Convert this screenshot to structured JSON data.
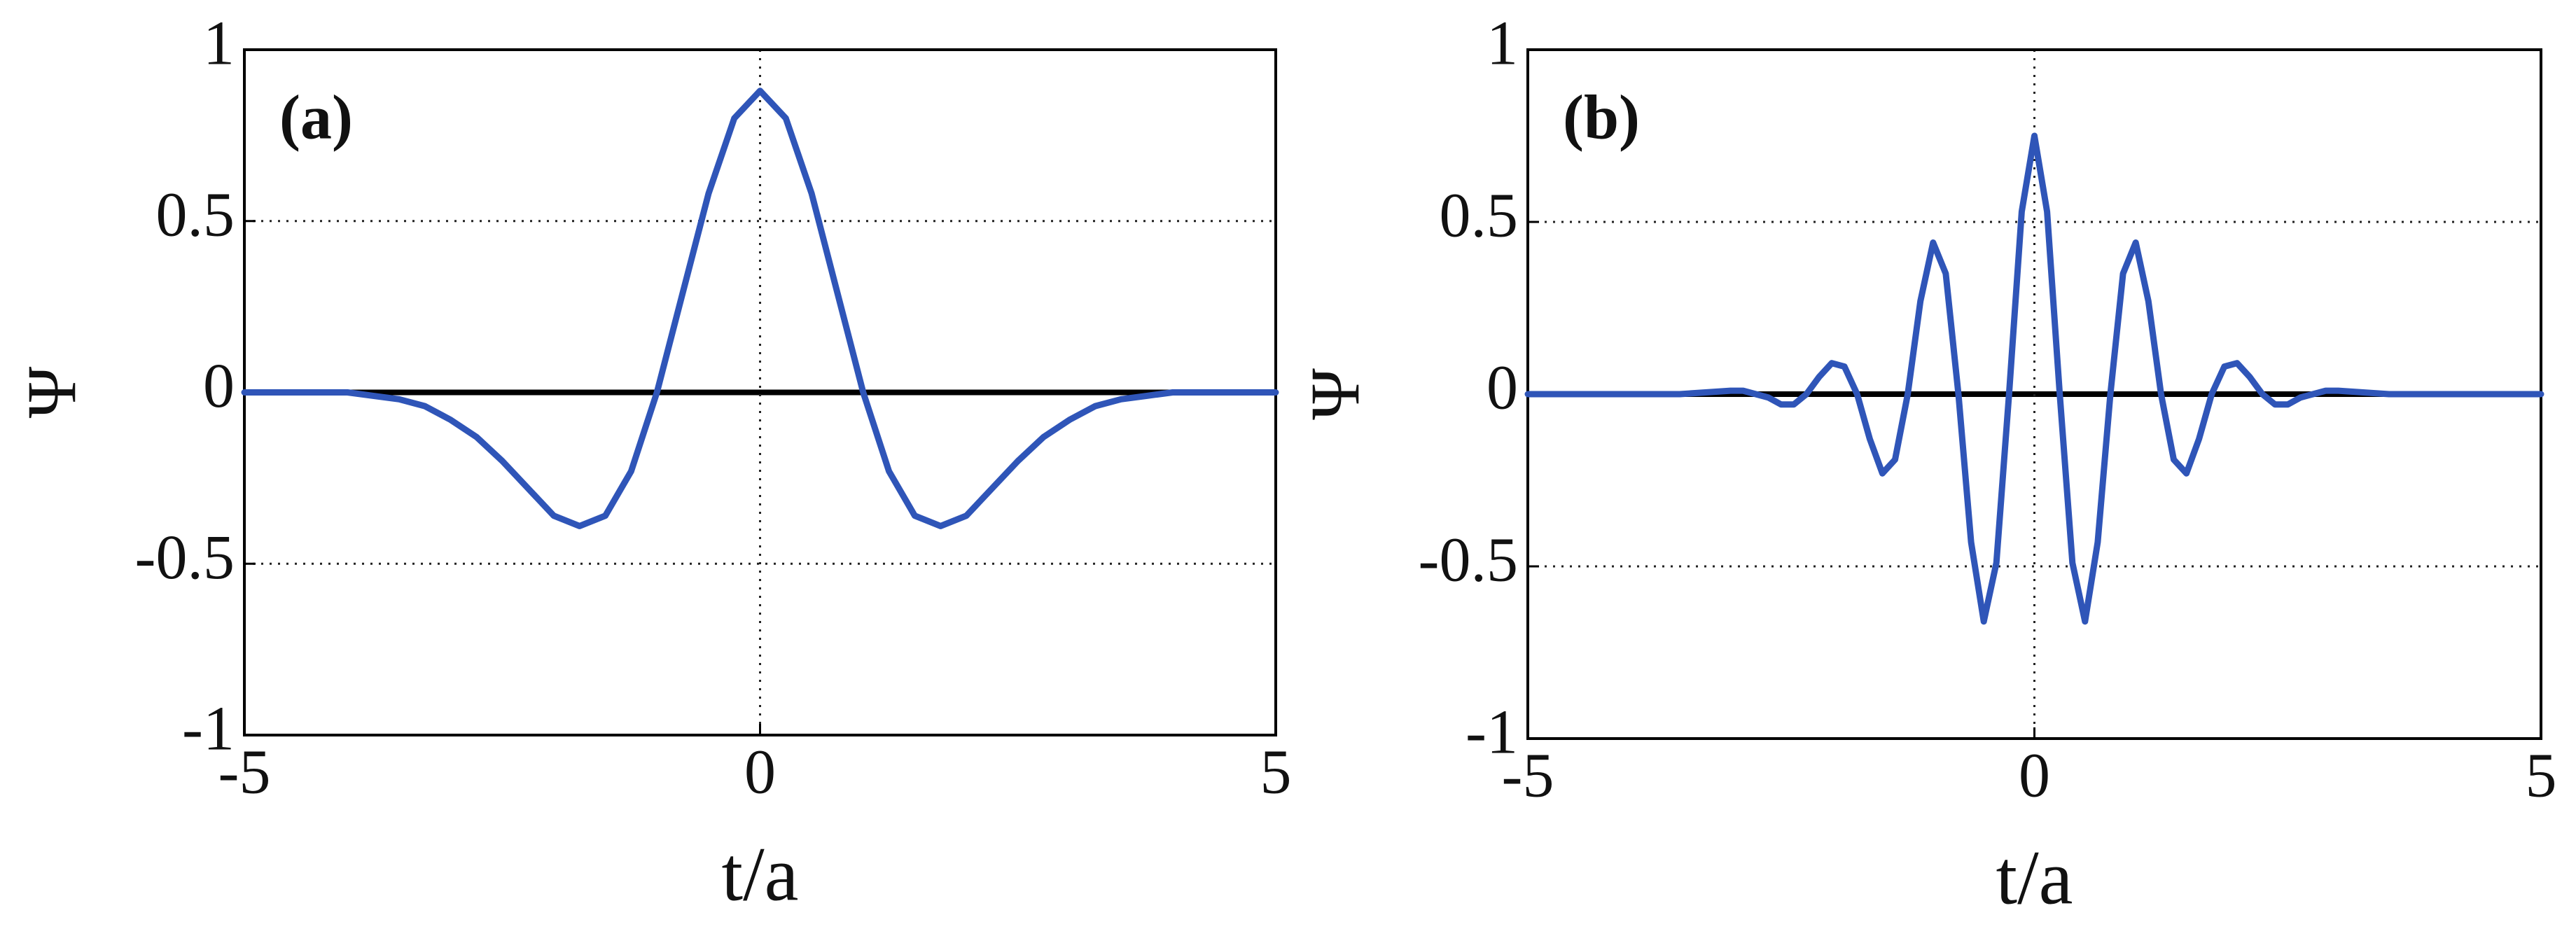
{
  "chart_data": [
    {
      "type": "line",
      "panel_label": "(a)",
      "xlabel": "t/a",
      "ylabel": "Ψ",
      "x": [
        -5,
        -4.75,
        -4.5,
        -4.25,
        -4,
        -3.75,
        -3.5,
        -3.25,
        -3,
        -2.75,
        -2.5,
        -2.25,
        -2,
        -1.75,
        -1.5,
        -1.25,
        -1,
        -0.75,
        -0.5,
        -0.25,
        0,
        0.25,
        0.5,
        0.75,
        1,
        1.25,
        1.5,
        1.75,
        2,
        2.25,
        2.5,
        2.75,
        3,
        3.25,
        3.5,
        3.75,
        4,
        4.25,
        4.5,
        4.75,
        5
      ],
      "series": [
        {
          "color": "#2f55b8",
          "values": [
            0,
            0,
            0,
            0,
            0,
            -0.01,
            -0.02,
            -0.04,
            -0.08,
            -0.13,
            -0.2,
            -0.28,
            -0.36,
            -0.39,
            -0.36,
            -0.23,
            0,
            0.29,
            0.58,
            0.8,
            0.88,
            0.8,
            0.58,
            0.29,
            0,
            -0.23,
            -0.36,
            -0.39,
            -0.36,
            -0.28,
            -0.2,
            -0.13,
            -0.08,
            -0.04,
            -0.02,
            -0.01,
            0,
            0,
            0,
            0,
            0
          ]
        }
      ],
      "xlim": [
        -5,
        5
      ],
      "ylim": [
        -1,
        1
      ],
      "xticks": [
        -5,
        0,
        5
      ],
      "yticks": [
        -1,
        -0.5,
        0,
        0.5,
        1
      ],
      "grid": true
    },
    {
      "type": "line",
      "panel_label": "(b)",
      "xlabel": "t/a",
      "ylabel": "Ψ",
      "x": [
        -5,
        -4.5,
        -4,
        -3.5,
        -3,
        -2.875,
        -2.75,
        -2.625,
        -2.5,
        -2.375,
        -2.25,
        -2.125,
        -2,
        -1.875,
        -1.75,
        -1.625,
        -1.5,
        -1.375,
        -1.25,
        -1.125,
        -1,
        -0.875,
        -0.75,
        -0.625,
        -0.5,
        -0.375,
        -0.25,
        -0.125,
        0,
        0.125,
        0.25,
        0.375,
        0.5,
        0.625,
        0.75,
        0.875,
        1,
        1.125,
        1.25,
        1.375,
        1.5,
        1.625,
        1.75,
        1.875,
        2,
        2.125,
        2.25,
        2.375,
        2.5,
        2.625,
        2.75,
        2.875,
        3,
        3.5,
        4,
        4.5,
        5
      ],
      "series": [
        {
          "color": "#2f55b8",
          "values": [
            0,
            0,
            0,
            0,
            0.01,
            0.01,
            0,
            -0.01,
            -0.03,
            -0.03,
            0,
            0.05,
            0.09,
            0.08,
            0,
            -0.13,
            -0.23,
            -0.19,
            0,
            0.27,
            0.44,
            0.35,
            0,
            -0.43,
            -0.66,
            -0.49,
            0,
            0.53,
            0.75,
            0.53,
            0,
            -0.49,
            -0.66,
            -0.43,
            0,
            0.35,
            0.44,
            0.27,
            0,
            -0.19,
            -0.23,
            -0.13,
            0,
            0.08,
            0.09,
            0.05,
            0,
            -0.03,
            -0.03,
            -0.01,
            0,
            0.01,
            0.01,
            0,
            0,
            0,
            0
          ]
        }
      ],
      "xlim": [
        -5,
        5
      ],
      "ylim": [
        -1,
        1
      ],
      "xticks": [
        -5,
        0,
        5
      ],
      "yticks": [
        -1,
        -0.5,
        0,
        0.5,
        1
      ],
      "grid": true
    }
  ]
}
